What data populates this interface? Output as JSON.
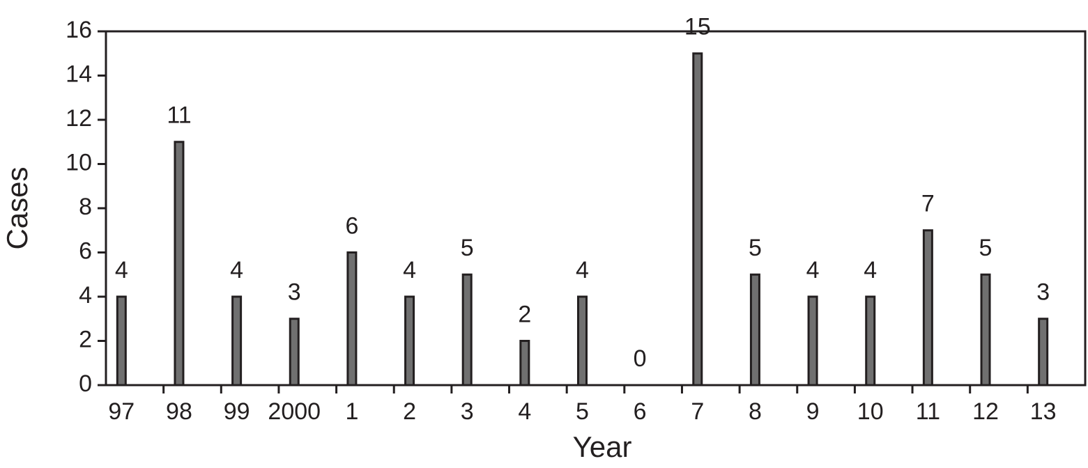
{
  "chart_data": {
    "type": "bar",
    "x_label": "Year",
    "y_label": "Cases",
    "categories": [
      "97",
      "98",
      "99",
      "2000",
      "1",
      "2",
      "3",
      "4",
      "5",
      "6",
      "7",
      "8",
      "9",
      "10",
      "11",
      "12",
      "13"
    ],
    "values": [
      4,
      11,
      4,
      3,
      6,
      4,
      5,
      2,
      4,
      0,
      15,
      5,
      4,
      4,
      7,
      5,
      3
    ],
    "color": "#707070",
    "ylim": [
      0,
      16
    ],
    "yticks": [
      0,
      2,
      4,
      6,
      8,
      10,
      12,
      14,
      16
    ],
    "grid": false
  }
}
